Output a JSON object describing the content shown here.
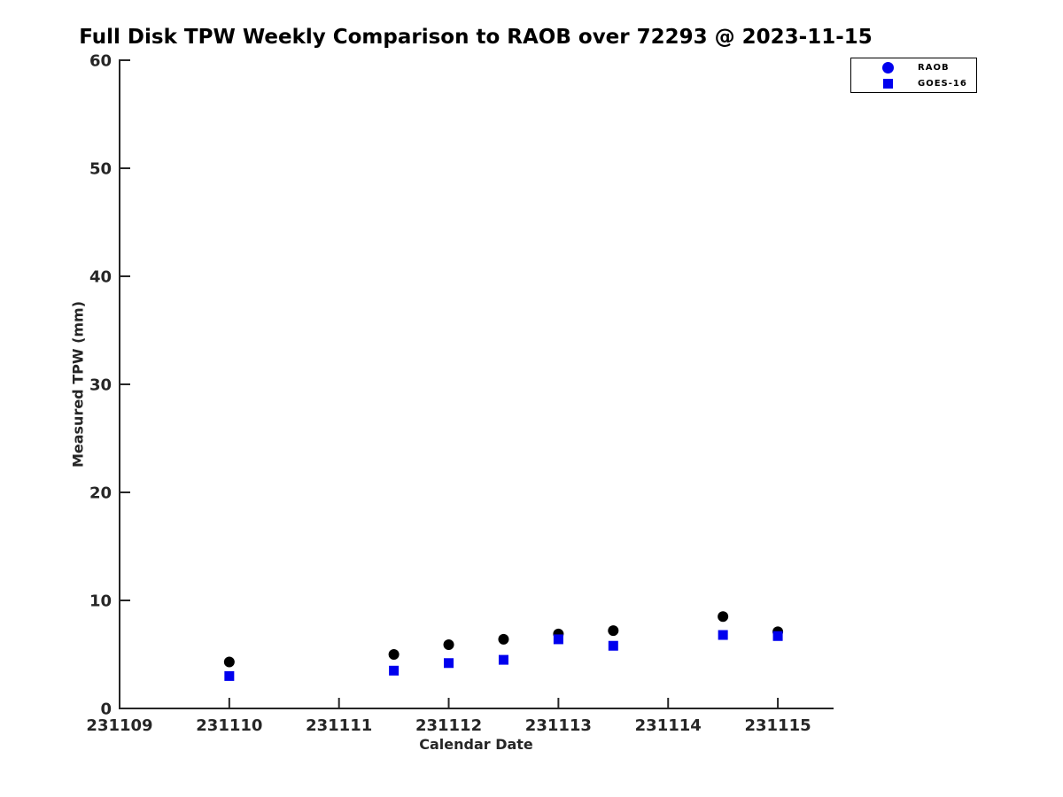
{
  "chart_data": {
    "type": "scatter",
    "title": "Full Disk TPW Weekly Comparison to RAOB over 72293 @ 2023-11-15",
    "xlabel": "Calendar Date",
    "ylabel": "Measured TPW (mm)",
    "xlim": [
      231109,
      231115.5
    ],
    "ylim": [
      0,
      60
    ],
    "xticks": [
      231109,
      231110,
      231111,
      231112,
      231113,
      231114,
      231115
    ],
    "yticks": [
      0,
      10,
      20,
      30,
      40,
      50,
      60
    ],
    "grid": false,
    "legend": {
      "position": "top-right"
    },
    "colors": {
      "axis": "#262626",
      "tick_text": "#262626",
      "title": "#000000",
      "raob_plot": "#000000",
      "goes_plot": "#0000ee",
      "legend_blue": "#0000ee"
    },
    "series": [
      {
        "name": "RAOB",
        "marker": "circle",
        "plot_color": "#000000",
        "legend_color": "#0000ee",
        "x": [
          231110,
          231111.5,
          231112,
          231112.5,
          231113,
          231113.5,
          231114.5,
          231115
        ],
        "y": [
          4.3,
          5.0,
          5.9,
          6.4,
          6.9,
          7.2,
          8.5,
          7.1
        ]
      },
      {
        "name": "GOES-16",
        "marker": "square",
        "plot_color": "#0000ee",
        "legend_color": "#0000ee",
        "x": [
          231110,
          231111.5,
          231112,
          231112.5,
          231113,
          231113.5,
          231114.5,
          231115
        ],
        "y": [
          3.0,
          3.5,
          4.2,
          4.5,
          6.4,
          5.8,
          6.8,
          6.7
        ]
      }
    ]
  }
}
